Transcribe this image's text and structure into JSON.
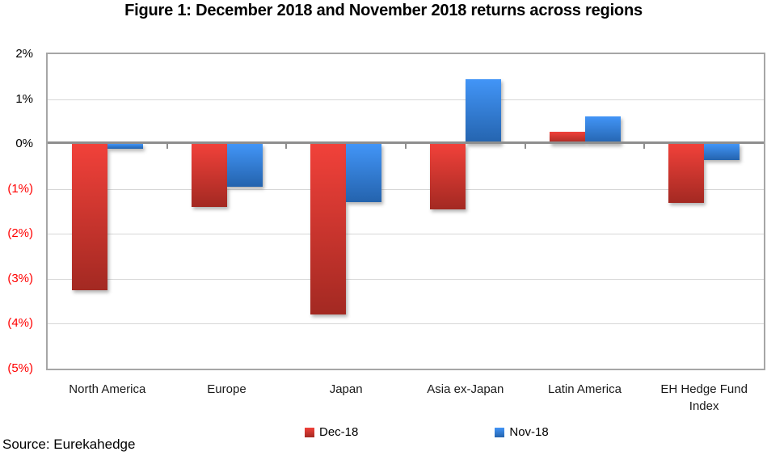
{
  "title": "Figure 1: December 2018 and November 2018 returns across regions",
  "source": "Source: Eurekahedge",
  "chart_data": {
    "type": "bar",
    "categories": [
      "North America",
      "Europe",
      "Japan",
      "Asia ex-Japan",
      "Latin America",
      "EH Hedge Fund Index"
    ],
    "series": [
      {
        "name": "Dec-18",
        "color_top": "#f1413a",
        "color_bottom": "#a32922",
        "values": [
          -3.25,
          -1.4,
          -3.8,
          -1.45,
          0.28,
          -1.31
        ]
      },
      {
        "name": "Nov-18",
        "color_top": "#4295f7",
        "color_bottom": "#2463ad",
        "values": [
          -0.1,
          -0.95,
          -1.3,
          1.45,
          0.62,
          -0.35
        ]
      }
    ],
    "ylabel": "",
    "xlabel": "",
    "ylim": [
      -5,
      2
    ],
    "yticks": [
      {
        "value": 2,
        "label": "2%"
      },
      {
        "value": 1,
        "label": "1%"
      },
      {
        "value": 0,
        "label": "0%"
      },
      {
        "value": -1,
        "label": "(1%)"
      },
      {
        "value": -2,
        "label": "(2%)"
      },
      {
        "value": -3,
        "label": "(3%)"
      },
      {
        "value": -4,
        "label": "(4%)"
      },
      {
        "value": -5,
        "label": "(5%)"
      }
    ],
    "grid": true,
    "legend_position": "bottom",
    "colors": {
      "gridline": "#d6d6d6",
      "zero_line": "#8e8e8e",
      "plot_border": "#a6a6a6",
      "negative_tick_label": "#ff0000"
    }
  }
}
